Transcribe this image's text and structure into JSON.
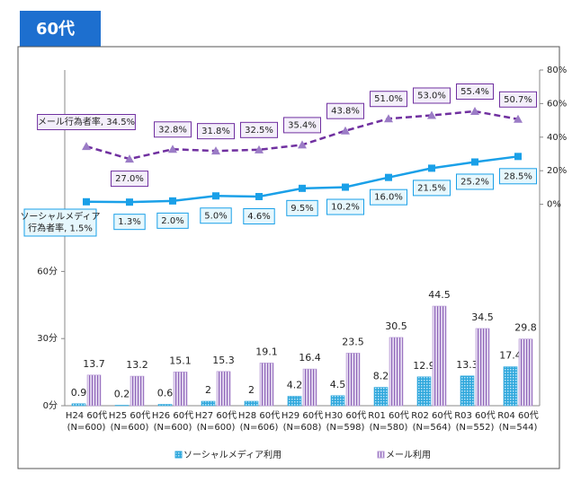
{
  "chart_data": {
    "type": "bar-line",
    "title": "60代",
    "categories": [
      "H24 60代",
      "H25 60代",
      "H26 60代",
      "H27 60代",
      "H28 60代",
      "H29 60代",
      "H30 60代",
      "R01 60代",
      "R02 60代",
      "R03 60代",
      "R04 60代"
    ],
    "sample_sizes": [
      "(N=600)",
      "(N=600)",
      "(N=600)",
      "(N=600)",
      "(N=606)",
      "(N=608)",
      "(N=598)",
      "(N=580)",
      "(N=564)",
      "(N=552)",
      "(N=544)"
    ],
    "ylim": [
      0,
      150
    ],
    "yticks": [
      {
        "value": 0,
        "label": "0分"
      },
      {
        "value": 30,
        "label": "30分"
      },
      {
        "value": 60,
        "label": "60分"
      }
    ],
    "y2lim": [
      -120,
      80
    ],
    "y2ticks": [
      {
        "value": 0,
        "label": "0%"
      },
      {
        "value": 20,
        "label": "20%"
      },
      {
        "value": 40,
        "label": "40%"
      },
      {
        "value": 60,
        "label": "60%"
      },
      {
        "value": 80,
        "label": "80%"
      }
    ],
    "series": [
      {
        "name": "ソーシャルメディア利用",
        "type": "bar",
        "color": "#2ea7dc",
        "values": [
          0.9,
          0.2,
          0.6,
          2.0,
          2.0,
          4.2,
          4.5,
          8.2,
          12.9,
          13.3,
          17.4
        ]
      },
      {
        "name": "メール利用",
        "type": "bar",
        "color": "#b79ad6",
        "values": [
          13.7,
          13.2,
          15.1,
          15.3,
          19.1,
          16.4,
          23.5,
          30.5,
          44.5,
          34.5,
          29.8
        ]
      },
      {
        "type": "line",
        "axis": "y2",
        "color": "#1aa0e8",
        "values": [
          1.5,
          1.3,
          2.0,
          5.0,
          4.6,
          9.5,
          10.2,
          16.0,
          21.5,
          25.2,
          28.5
        ],
        "value_labels": [
          "ソーシャルメディア\n行為者率, 1.5%",
          "1.3%",
          "2.0%",
          "5.0%",
          "4.6%",
          "9.5%",
          "10.2%",
          "16.0%",
          "21.5%",
          "25.2%",
          "28.5%"
        ]
      },
      {
        "type": "line",
        "axis": "y2",
        "color": "#7030a0",
        "values": [
          34.5,
          27.0,
          32.8,
          31.8,
          32.5,
          35.4,
          43.8,
          51.0,
          53.0,
          55.4,
          50.7
        ],
        "value_labels": [
          "メール行為者率, 34.5%",
          "27.0%",
          "32.8%",
          "31.8%",
          "32.5%",
          "35.4%",
          "43.8%",
          "51.0%",
          "53.0%",
          "55.4%",
          "50.7%"
        ]
      }
    ]
  }
}
